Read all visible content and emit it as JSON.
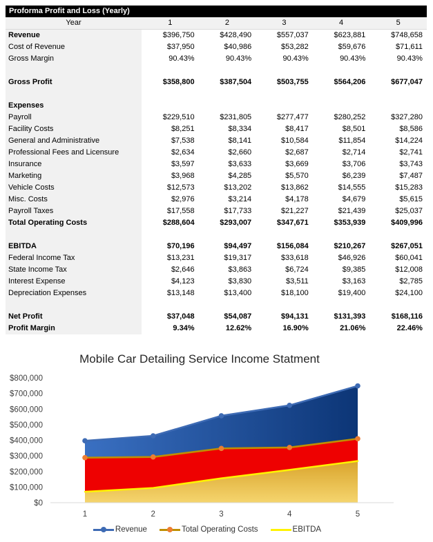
{
  "table": {
    "title": "Proforma Profit and Loss (Yearly)",
    "year_header": {
      "label": "Year",
      "columns": [
        "1",
        "2",
        "3",
        "4",
        "5"
      ]
    },
    "rows": [
      {
        "label": "Revenue",
        "bold_label": true,
        "bold_values": false,
        "values": [
          "$396,750",
          "$428,490",
          "$557,037",
          "$623,881",
          "$748,658"
        ]
      },
      {
        "label": "Cost of Revenue",
        "values": [
          "$37,950",
          "$40,986",
          "$53,282",
          "$59,676",
          "$71,611"
        ]
      },
      {
        "label": "Gross Margin",
        "values": [
          "90.43%",
          "90.43%",
          "90.43%",
          "90.43%",
          "90.43%"
        ]
      },
      {
        "blank": true
      },
      {
        "label": "Gross Profit",
        "bold_label": true,
        "bold_values": true,
        "values": [
          "$358,800",
          "$387,504",
          "$503,755",
          "$564,206",
          "$677,047"
        ]
      },
      {
        "blank": true
      },
      {
        "label": "Expenses",
        "bold_label": true,
        "values": [
          "",
          "",
          "",
          "",
          ""
        ]
      },
      {
        "label": "Payroll",
        "values": [
          "$229,510",
          "$231,805",
          "$277,477",
          "$280,252",
          "$327,280"
        ]
      },
      {
        "label": "Facility Costs",
        "values": [
          "$8,251",
          "$8,334",
          "$8,417",
          "$8,501",
          "$8,586"
        ]
      },
      {
        "label": "General and Administrative",
        "values": [
          "$7,538",
          "$8,141",
          "$10,584",
          "$11,854",
          "$14,224"
        ]
      },
      {
        "label": "Professional Fees and Licensure",
        "values": [
          "$2,634",
          "$2,660",
          "$2,687",
          "$2,714",
          "$2,741"
        ]
      },
      {
        "label": "Insurance",
        "values": [
          "$3,597",
          "$3,633",
          "$3,669",
          "$3,706",
          "$3,743"
        ]
      },
      {
        "label": "Marketing",
        "values": [
          "$3,968",
          "$4,285",
          "$5,570",
          "$6,239",
          "$7,487"
        ]
      },
      {
        "label": "Vehicle Costs",
        "values": [
          "$12,573",
          "$13,202",
          "$13,862",
          "$14,555",
          "$15,283"
        ]
      },
      {
        "label": "Misc. Costs",
        "values": [
          "$2,976",
          "$3,214",
          "$4,178",
          "$4,679",
          "$5,615"
        ]
      },
      {
        "label": "Payroll Taxes",
        "values": [
          "$17,558",
          "$17,733",
          "$21,227",
          "$21,439",
          "$25,037"
        ]
      },
      {
        "label": "Total Operating Costs",
        "bold_label": true,
        "bold_values": true,
        "values": [
          "$288,604",
          "$293,007",
          "$347,671",
          "$353,939",
          "$409,996"
        ]
      },
      {
        "blank": true
      },
      {
        "label": "EBITDA",
        "bold_label": true,
        "bold_values": true,
        "values": [
          "$70,196",
          "$94,497",
          "$156,084",
          "$210,267",
          "$267,051"
        ]
      },
      {
        "label": "Federal Income Tax",
        "values": [
          "$13,231",
          "$19,317",
          "$33,618",
          "$46,926",
          "$60,041"
        ]
      },
      {
        "label": "State Income Tax",
        "values": [
          "$2,646",
          "$3,863",
          "$6,724",
          "$9,385",
          "$12,008"
        ]
      },
      {
        "label": "Interest Expense",
        "values": [
          "$4,123",
          "$3,830",
          "$3,511",
          "$3,163",
          "$2,785"
        ]
      },
      {
        "label": "Depreciation Expenses",
        "values": [
          "$13,148",
          "$13,400",
          "$18,100",
          "$19,400",
          "$24,100"
        ]
      },
      {
        "blank": true
      },
      {
        "label": "Net Profit",
        "bold_label": true,
        "bold_values": true,
        "values": [
          "$37,048",
          "$54,087",
          "$94,131",
          "$131,393",
          "$168,116"
        ]
      },
      {
        "label": "Profit Margin",
        "bold_label": true,
        "bold_values": true,
        "values": [
          "9.34%",
          "12.62%",
          "16.90%",
          "21.06%",
          "22.46%"
        ]
      }
    ]
  },
  "chart_data": {
    "type": "area",
    "title": "Mobile Car Detailing Service Income Statment",
    "x": [
      1,
      2,
      3,
      4,
      5
    ],
    "xtick_labels": [
      "1",
      "2",
      "3",
      "4",
      "5"
    ],
    "series": [
      {
        "name": "Revenue",
        "values": [
          396750,
          428490,
          557037,
          623881,
          748658
        ],
        "line_color": "#3E6BB4",
        "marker": true,
        "marker_color": "#3E6BB4",
        "fill_type": "gradient-horizontal",
        "fill_from": "#3A70C2",
        "fill_to": "#0C3576"
      },
      {
        "name": "Total Operating Costs",
        "values": [
          288604,
          293007,
          347671,
          353939,
          409996
        ],
        "line_color": "#BF8F00",
        "marker": true,
        "marker_color": "#ED7D31",
        "fill_type": "solid",
        "fill_from": "#EE0101",
        "fill_to": "#EE0101"
      },
      {
        "name": "EBITDA",
        "values": [
          70196,
          94497,
          156084,
          210267,
          267051
        ],
        "line_color": "#FFF200",
        "marker": false,
        "fill_type": "gradient-vertical",
        "fill_from": "#D9A42C",
        "fill_to": "#F5D56E"
      }
    ],
    "ylim": [
      0,
      800000
    ],
    "ytick_labels": [
      "$800,000",
      "$700,000",
      "$600,000",
      "$500,000",
      "$400,000",
      "$300,000",
      "$200,000",
      "$100,000",
      "$0"
    ],
    "ylabel": "",
    "xlabel": "",
    "gridlines": false,
    "legend_position": "bottom",
    "axis_color": "#D9D9D9"
  }
}
